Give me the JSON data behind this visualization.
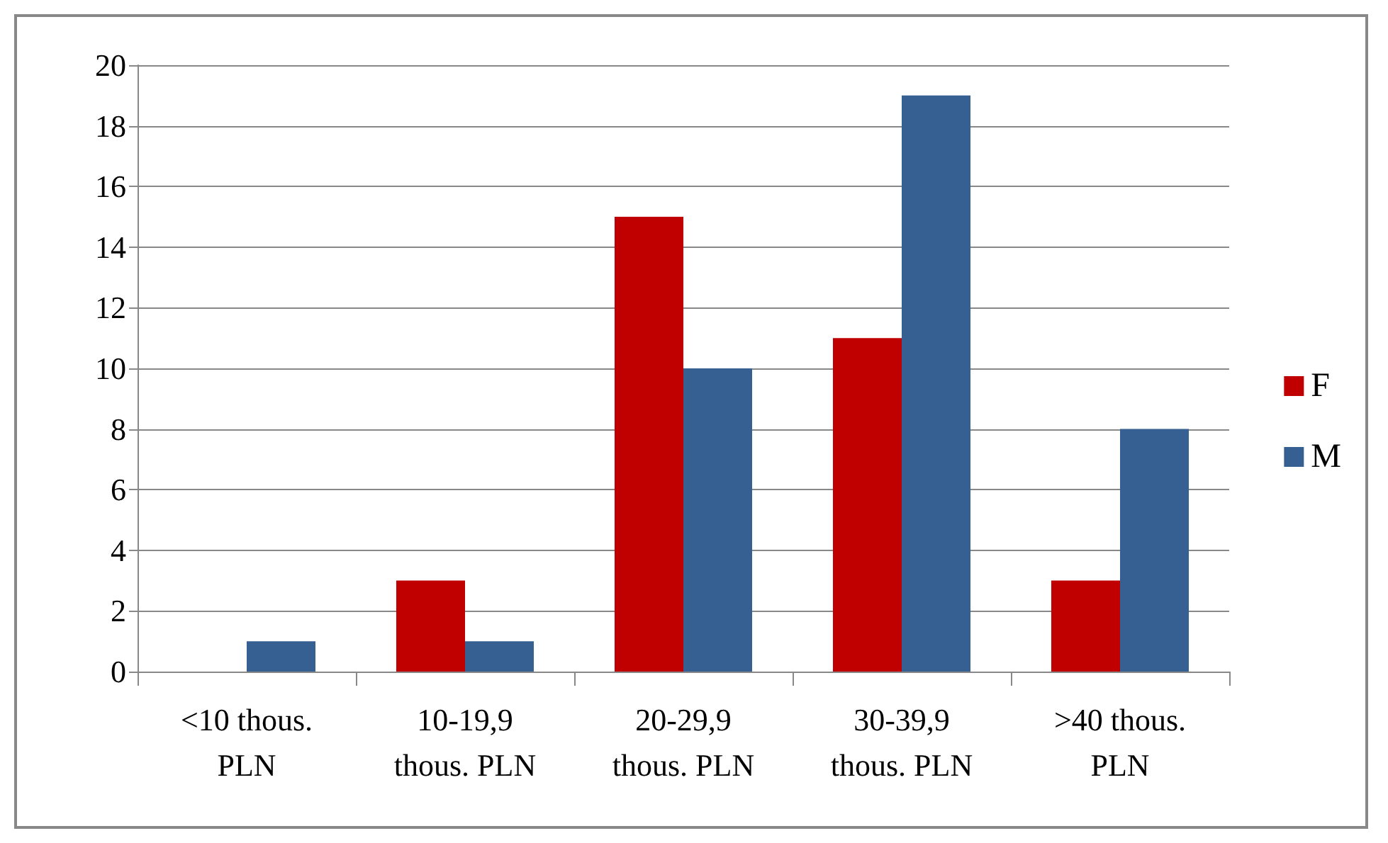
{
  "chart_data": {
    "type": "bar",
    "categories": [
      "<10 thous.\nPLN",
      "10-19,9\nthous. PLN",
      "20-29,9\nthous. PLN",
      "30-39,9\nthous. PLN",
      ">40 thous.\nPLN"
    ],
    "series": [
      {
        "name": "F",
        "color": "#c00000",
        "values": [
          0,
          3,
          15,
          11,
          3
        ]
      },
      {
        "name": "M",
        "color": "#376092",
        "values": [
          1,
          1,
          10,
          19,
          8
        ]
      }
    ],
    "ylim": [
      0,
      20
    ],
    "yticks": [
      0,
      2,
      4,
      6,
      8,
      10,
      12,
      14,
      16,
      18,
      20
    ],
    "grid": "y",
    "legend": "right"
  }
}
